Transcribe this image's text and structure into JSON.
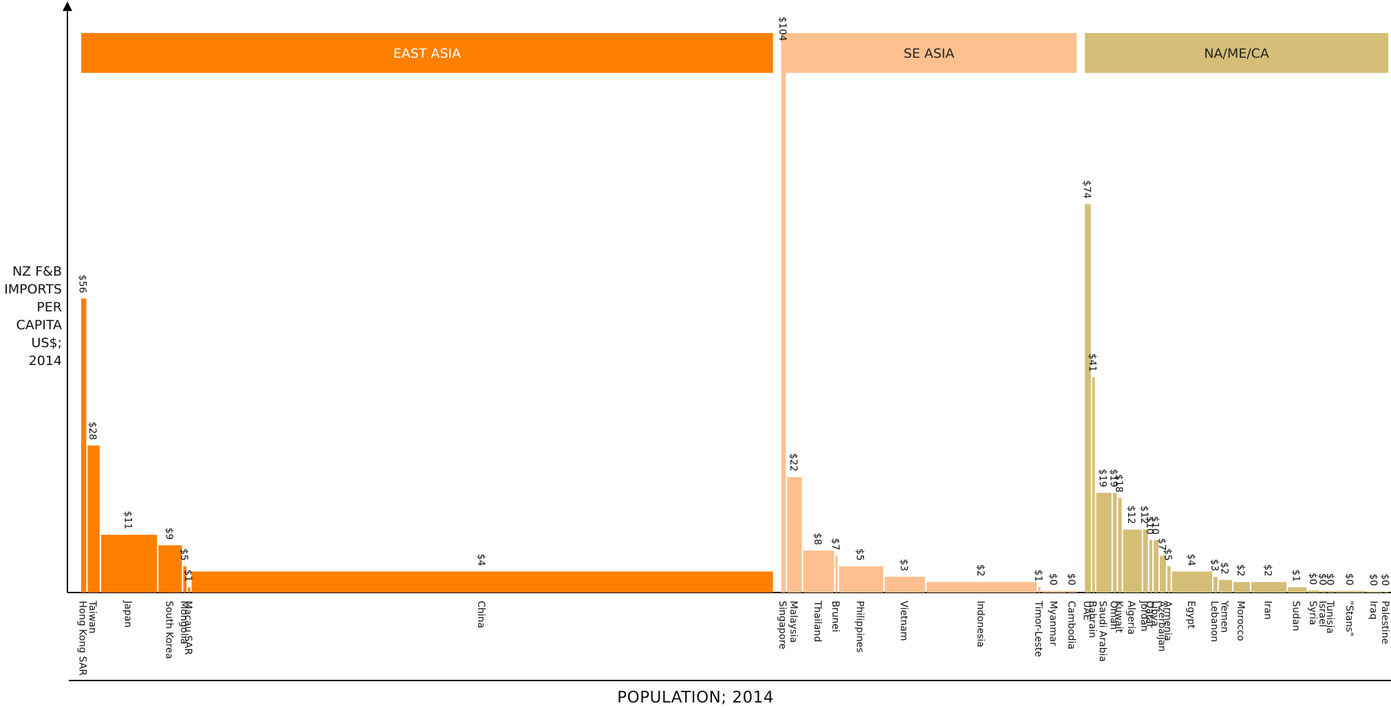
{
  "y_axis_label": [
    "NZ F&B",
    "IMPORTS",
    "PER",
    "CAPITA",
    "US$; 2014"
  ],
  "x_axis_label": "POPULATION; 2014",
  "chart_data": {
    "type": "bar",
    "title": "",
    "xlabel": "POPULATION; 2014",
    "ylabel": "NZ F&B IMPORTS PER CAPITA US$; 2014",
    "ylim": [
      0,
      110
    ],
    "x_unit": "population (millions)",
    "regions": [
      {
        "name": "EAST ASIA",
        "color": "#FF7F00",
        "text_color": "#ffffff"
      },
      {
        "name": "SE ASIA",
        "color": "#FFC090",
        "text_color": "#222222"
      },
      {
        "name": "NA/ME/CA",
        "color": "#D5BE78",
        "text_color": "#222222"
      }
    ],
    "series": [
      {
        "region": "EAST ASIA",
        "countries": [
          {
            "name": "Hong Kong SAR",
            "population": 7.2,
            "value": 56,
            "value_label": "$56"
          },
          {
            "name": "Taiwan",
            "population": 23.4,
            "value": 28,
            "value_label": "$28"
          },
          {
            "name": "Japan",
            "population": 127,
            "value": 11,
            "value_label": "$11"
          },
          {
            "name": "South Korea",
            "population": 50.4,
            "value": 9,
            "value_label": "$9"
          },
          {
            "name": "Mongolia",
            "population": 2.9,
            "value": 5,
            "value_label": "$5"
          },
          {
            "name": "Macau SAR",
            "population": 0.6,
            "value": 1,
            "value_label": "$1"
          },
          {
            "name": "China",
            "population": 1364,
            "value": 4,
            "value_label": "$4"
          }
        ]
      },
      {
        "region": "SE ASIA",
        "countries": [
          {
            "name": "Singapore",
            "population": 5.5,
            "value": 104,
            "value_label": "$104"
          },
          {
            "name": "Malaysia",
            "population": 30,
            "value": 22,
            "value_label": "$22"
          },
          {
            "name": "Thailand",
            "population": 67.7,
            "value": 8,
            "value_label": "$8"
          },
          {
            "name": "Brunei",
            "population": 0.4,
            "value": 7,
            "value_label": "$7"
          },
          {
            "name": "Philippines",
            "population": 99.1,
            "value": 5,
            "value_label": "$5"
          },
          {
            "name": "Vietnam",
            "population": 90.7,
            "value": 3,
            "value_label": "$3"
          },
          {
            "name": "Indonesia",
            "population": 254.5,
            "value": 2,
            "value_label": "$2"
          },
          {
            "name": "Timor-Leste",
            "population": 1.2,
            "value": 1,
            "value_label": "$1"
          },
          {
            "name": "Myanmar",
            "population": 53.4,
            "value": 0.3,
            "value_label": "$0"
          },
          {
            "name": "Cambodia",
            "population": 15.3,
            "value": 0.3,
            "value_label": "$0"
          }
        ]
      },
      {
        "region": "NA/ME/CA",
        "countries": [
          {
            "name": "UAE",
            "population": 9.1,
            "value": 74,
            "value_label": "$74"
          },
          {
            "name": "Bahrain",
            "population": 1.4,
            "value": 41,
            "value_label": "$41"
          },
          {
            "name": "Saudi Arabia",
            "population": 30.9,
            "value": 19,
            "value_label": "$19"
          },
          {
            "name": "Oman",
            "population": 4.2,
            "value": 19,
            "value_label": "$19"
          },
          {
            "name": "Kuwait",
            "population": 3.8,
            "value": 18,
            "value_label": "$18"
          },
          {
            "name": "Algeria",
            "population": 38.9,
            "value": 12,
            "value_label": "$12"
          },
          {
            "name": "Jordan",
            "population": 6.6,
            "value": 12,
            "value_label": "$12"
          },
          {
            "name": "Qatar",
            "population": 2.2,
            "value": 10,
            "value_label": "$10"
          },
          {
            "name": "Libya",
            "population": 6.3,
            "value": 10,
            "value_label": "$10"
          },
          {
            "name": "Azerbaijan",
            "population": 9.5,
            "value": 7,
            "value_label": "$7"
          },
          {
            "name": "Armenia",
            "population": 3,
            "value": 5,
            "value_label": "$5"
          },
          {
            "name": "Egypt",
            "population": 89.6,
            "value": 4,
            "value_label": "$4"
          },
          {
            "name": "Lebanon",
            "population": 4.5,
            "value": 3,
            "value_label": "$3"
          },
          {
            "name": "Yemen",
            "population": 26.2,
            "value": 2.4,
            "value_label": "$2"
          },
          {
            "name": "Morocco",
            "population": 33.9,
            "value": 2,
            "value_label": "$2"
          },
          {
            "name": "Iran",
            "population": 78.1,
            "value": 2,
            "value_label": "$2"
          },
          {
            "name": "Sudan",
            "population": 39.4,
            "value": 1,
            "value_label": "$1"
          },
          {
            "name": "Syria",
            "population": 22.2,
            "value": 0.4,
            "value_label": "$0"
          },
          {
            "name": "Israel",
            "population": 8.2,
            "value": 0.3,
            "value_label": "$0"
          },
          {
            "name": "Tunisia",
            "population": 11,
            "value": 0.3,
            "value_label": "$0"
          },
          {
            "name": "\"Stans\"",
            "population": 63,
            "value": 0.3,
            "value_label": "$0"
          },
          {
            "name": "Iraq",
            "population": 34.8,
            "value": 0.2,
            "value_label": "$0"
          },
          {
            "name": "Palestine",
            "population": 4.3,
            "value": 0.2,
            "value_label": "$0"
          }
        ]
      }
    ],
    "grid": false,
    "legend": "top"
  }
}
